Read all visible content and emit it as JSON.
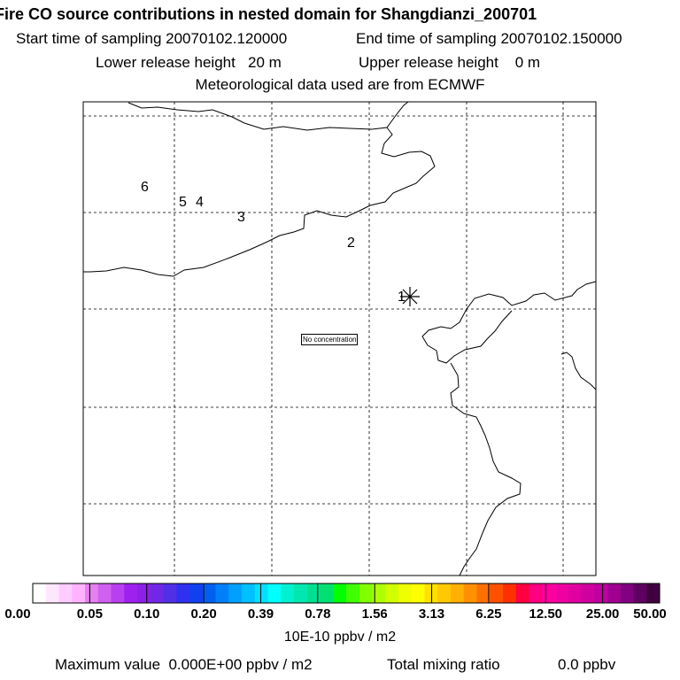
{
  "header": {
    "title": "Fire CO source contributions in nested domain for Shangdianzi_200701",
    "start_time": "Start time of sampling 20070102.120000",
    "end_time": "End time of sampling 20070102.150000",
    "lower_release": "Lower release height   20 m",
    "upper_release": "Upper release height    0 m",
    "met_data": "Meteorological data used are from ECMWF"
  },
  "map": {
    "no_concentration_label": "No concentration",
    "station_marker": "asterisk-icon"
  },
  "chart_data": {
    "type": "heatmap",
    "title": "Fire CO source contributions in nested domain for Shangdianzi_200701",
    "trajectory_labels": [
      "1",
      "2",
      "3",
      "4",
      "5",
      "6"
    ],
    "colorbar": {
      "ticks": [
        "0.00",
        "0.05",
        "0.10",
        "0.20",
        "0.39",
        "0.78",
        "1.56",
        "3.13",
        "6.25",
        "12.50",
        "25.00",
        "50.00"
      ],
      "unit": "10E-10 ppbv / m2",
      "colors": [
        "#ffffff",
        "#ffe6ff",
        "#ffccff",
        "#ffb3ff",
        "#e680f0",
        "#d060f0",
        "#b840f0",
        "#a020f0",
        "#8c20e6",
        "#7028e6",
        "#5030e6",
        "#3030f0",
        "#1040f0",
        "#0060f0",
        "#0080f8",
        "#00a0ff",
        "#00c0ff",
        "#00e0ff",
        "#00ffff",
        "#00f0d0",
        "#00e8b0",
        "#00e090",
        "#00e070",
        "#00ff00",
        "#40ff00",
        "#80ff00",
        "#b0ff00",
        "#d0ff00",
        "#f0ff00",
        "#ffff00",
        "#ffe000",
        "#ffc800",
        "#ffb000",
        "#ff9000",
        "#ff7000",
        "#ff5000",
        "#ff3000",
        "#ff0040",
        "#ff0080",
        "#ff00a0",
        "#f000a0",
        "#e000a0",
        "#d000a0",
        "#c000a0",
        "#a00090",
        "#800080",
        "#600060",
        "#400040"
      ]
    }
  },
  "footer": {
    "max_value": "Maximum value  0.000E+00 ppbv / m2",
    "mixing_ratio_label": "Total mixing ratio",
    "mixing_ratio_value": "0.0 ppbv"
  }
}
